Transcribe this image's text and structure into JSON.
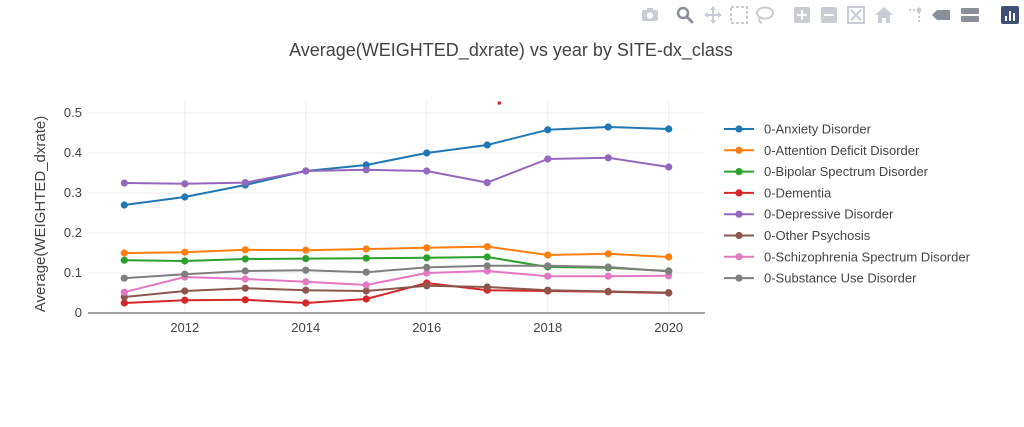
{
  "modebar": {
    "icons": [
      "camera-icon",
      "zoom-icon",
      "pan-icon",
      "box-select-icon",
      "lasso-select-icon",
      "zoom-in-icon",
      "zoom-out-icon",
      "autoscale-icon",
      "reset-axes-icon",
      "spike-lines-icon",
      "hover-closest-icon",
      "hover-compare-icon",
      "plotly-logo-icon"
    ],
    "icon_color": "#c8ccd4",
    "active_color": "#8a9099",
    "logo_color": "#3f4f75"
  },
  "chart_data": {
    "type": "line",
    "title": "Average(WEIGHTED_dxrate) vs year by SITE-dx_class",
    "xlabel": "",
    "ylabel": "Average(WEIGHTED_dxrate)",
    "x": [
      2011,
      2012,
      2013,
      2014,
      2015,
      2016,
      2017,
      2018,
      2019,
      2020
    ],
    "xlim": [
      2010.4,
      2020.6
    ],
    "ylim": [
      0,
      0.53
    ],
    "xticks": [
      2012,
      2014,
      2016,
      2018,
      2020
    ],
    "yticks": [
      0,
      0.1,
      0.2,
      0.3,
      0.4,
      0.5
    ],
    "grid": true,
    "legend_position": "right",
    "series": [
      {
        "name": "0-Anxiety Disorder",
        "color": "#1f77b4",
        "values": [
          0.27,
          0.29,
          0.32,
          0.355,
          0.37,
          0.4,
          0.42,
          0.458,
          0.465,
          0.46
        ]
      },
      {
        "name": "0-Attention Deficit Disorder",
        "color": "#ff7f0e",
        "values": [
          0.15,
          0.152,
          0.158,
          0.157,
          0.16,
          0.163,
          0.166,
          0.145,
          0.148,
          0.14
        ]
      },
      {
        "name": "0-Bipolar Spectrum Disorder",
        "color": "#2ca02c",
        "values": [
          0.132,
          0.13,
          0.135,
          0.136,
          0.137,
          0.138,
          0.14,
          0.115,
          0.113,
          0.105
        ]
      },
      {
        "name": "0-Dementia",
        "color": "#d62728",
        "values": [
          0.025,
          0.032,
          0.033,
          0.025,
          0.035,
          0.075,
          0.057,
          0.055,
          0.053,
          0.05
        ]
      },
      {
        "name": "0-Depressive Disorder",
        "color": "#9467bd",
        "values": [
          0.325,
          0.323,
          0.326,
          0.355,
          0.358,
          0.355,
          0.326,
          0.385,
          0.388,
          0.365
        ]
      },
      {
        "name": "0-Other Psychosis",
        "color": "#8c564b",
        "values": [
          0.04,
          0.055,
          0.062,
          0.057,
          0.055,
          0.068,
          0.065,
          0.057,
          0.054,
          0.051
        ]
      },
      {
        "name": "0-Schizophrenia Spectrum Disorder",
        "color": "#e377c2",
        "values": [
          0.052,
          0.09,
          0.085,
          0.078,
          0.07,
          0.1,
          0.105,
          0.092,
          0.092,
          0.093
        ]
      },
      {
        "name": "0-Substance Use Disorder",
        "color": "#7f7f7f",
        "values": [
          0.087,
          0.097,
          0.105,
          0.107,
          0.102,
          0.114,
          0.118,
          0.118,
          0.115,
          0.104
        ]
      }
    ],
    "annotation": {
      "x": 2017.2,
      "y": 0.525,
      "color": "#d62728"
    }
  }
}
